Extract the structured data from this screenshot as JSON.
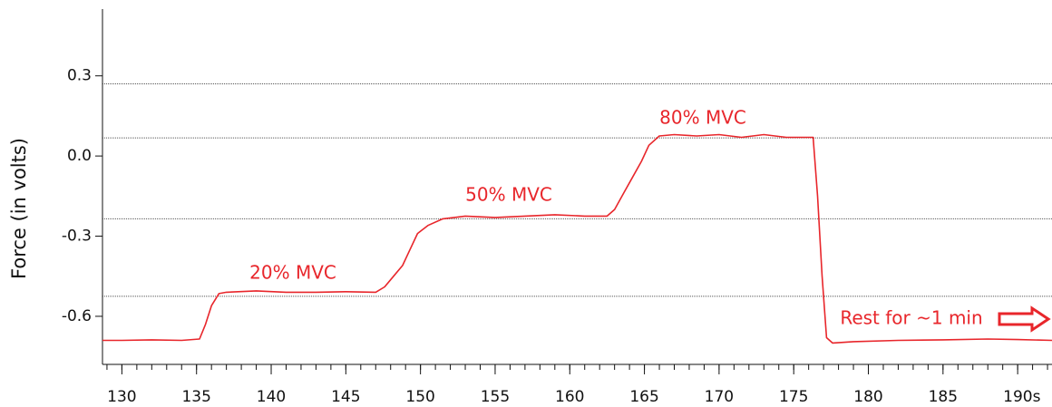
{
  "chart_data": {
    "type": "line",
    "y_label": "Force (in volts)",
    "xlim": [
      128.7,
      192.3
    ],
    "ylim": [
      -0.78,
      0.55
    ],
    "xticks": [
      130,
      135,
      140,
      145,
      150,
      155,
      160,
      165,
      170,
      175,
      180,
      185,
      {
        "value": 190,
        "label": "190s"
      }
    ],
    "xminorticks": [
      129,
      130,
      131,
      132,
      133,
      134,
      135,
      136,
      137,
      138,
      139,
      140,
      141,
      142,
      143,
      144,
      145,
      146,
      147,
      148,
      149,
      150,
      151,
      152,
      153,
      154,
      155,
      156,
      157,
      158,
      159,
      160,
      161,
      162,
      163,
      164,
      165,
      166,
      167,
      168,
      169,
      170,
      171,
      172,
      173,
      174,
      175,
      176,
      177,
      178,
      179,
      180,
      181,
      182,
      183,
      184,
      185,
      186,
      187,
      188,
      189,
      190,
      191,
      192
    ],
    "yticks": [
      {
        "value": 0.3,
        "label": "0.3"
      },
      {
        "value": 0,
        "label": "0.0"
      },
      {
        "value": -0.3,
        "label": "-0.3"
      },
      {
        "value": -0.6,
        "label": "-0.6"
      }
    ],
    "reference_lines": [
      0.27,
      0.068,
      -0.235,
      -0.525
    ],
    "annotations": [
      "20% MVC",
      "50% MVC",
      "80% MVC",
      "Rest for ~1 min"
    ],
    "series": [
      {
        "color": "#e8262b",
        "x": [
          128.7,
          130,
          132,
          134,
          135.2,
          135.6,
          136,
          136.5,
          137,
          139,
          141,
          143,
          145,
          147,
          147.6,
          148.2,
          148.8,
          149.3,
          149.8,
          150.5,
          151.5,
          153,
          155,
          157,
          159,
          161,
          162.5,
          163,
          163.6,
          164.2,
          164.8,
          165.3,
          166,
          167,
          168.5,
          170,
          171.5,
          173,
          174.5,
          176,
          176.3,
          176.6,
          176.9,
          177.2,
          177.6,
          179,
          182,
          185,
          188,
          190,
          192.3
        ],
        "values": [
          -0.69,
          -0.69,
          -0.688,
          -0.69,
          -0.685,
          -0.63,
          -0.56,
          -0.515,
          -0.51,
          -0.505,
          -0.51,
          -0.51,
          -0.508,
          -0.51,
          -0.49,
          -0.45,
          -0.41,
          -0.35,
          -0.29,
          -0.26,
          -0.235,
          -0.225,
          -0.23,
          -0.225,
          -0.22,
          -0.225,
          -0.225,
          -0.2,
          -0.14,
          -0.08,
          -0.02,
          0.04,
          0.075,
          0.08,
          0.075,
          0.08,
          0.07,
          0.08,
          0.07,
          0.07,
          0.07,
          -0.15,
          -0.45,
          -0.68,
          -0.7,
          -0.695,
          -0.69,
          -0.688,
          -0.685,
          -0.687,
          -0.69
        ]
      }
    ]
  }
}
